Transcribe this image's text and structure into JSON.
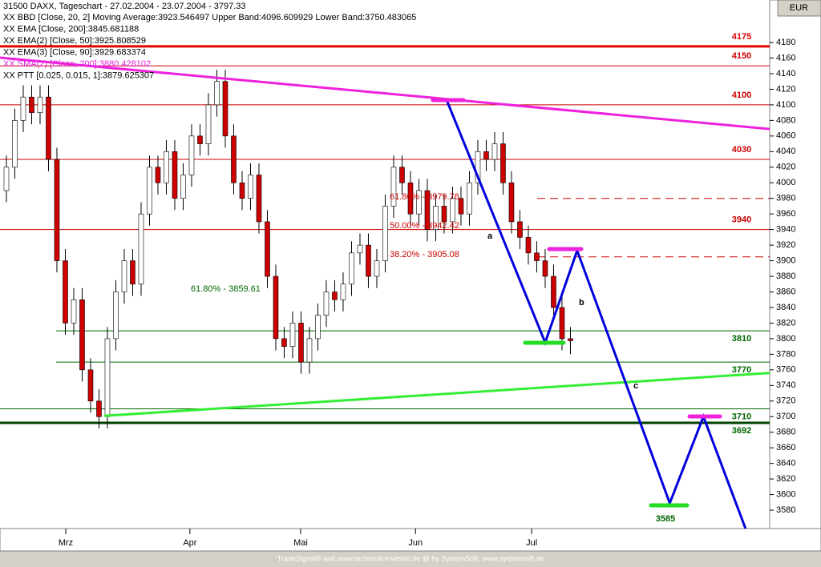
{
  "chart_data": {
    "type": "candlestick",
    "title": "31500  DAXX, Tageschart - 27.02.2004 - 23.07.2004 - 3797.33",
    "legend": [
      "XX BBD [Close, 20, 2] Moving Average:3923.546497 Upper Band:4096.609929 Lower Band:3750.483065",
      "XX EMA [Close, 200]:3845.681188",
      "XX EMA(2) [Close, 50]:3925.808529",
      "XX EMA(3) [Close, 90]:3929.683374",
      "XX SMA(2) [Close, 200]:3880.428102",
      "XX PTT [0.025, 0.015, 1]:3879.625307"
    ],
    "currency": "EUR",
    "footer": "TradeSignal® and www.technical-investor.de @ by SystemSoft, www.systemsoft.de",
    "open": [
      3990,
      4020,
      4080,
      4110,
      4090,
      4110,
      4030,
      3900,
      3820,
      3850,
      3760,
      3720,
      3700,
      3800,
      3860,
      3900,
      3870,
      3960,
      4020,
      4000,
      4040,
      3980,
      4010,
      4060,
      4050,
      4100,
      4130,
      4060,
      4000,
      3980,
      4010,
      3950,
      3880,
      3800,
      3790,
      3820,
      3770,
      3800,
      3830,
      3860,
      3850,
      3870,
      3910,
      3920,
      3880,
      3900,
      3970,
      4020,
      4000,
      3960,
      3990,
      3940,
      3970,
      3950,
      3980,
      3960,
      4000,
      4040,
      4030,
      4050,
      4000,
      3950,
      3930,
      3910,
      3900,
      3880,
      3840,
      3800
    ],
    "high": [
      4035,
      4095,
      4125,
      4125,
      4125,
      4125,
      4045,
      3915,
      3865,
      3865,
      3775,
      3735,
      3815,
      3875,
      3915,
      3915,
      3975,
      4035,
      4035,
      4055,
      4055,
      4025,
      4075,
      4075,
      4115,
      4145,
      4145,
      4075,
      4015,
      4025,
      4025,
      3965,
      3895,
      3815,
      3835,
      3835,
      3815,
      3845,
      3875,
      3875,
      3885,
      3925,
      3935,
      3935,
      3915,
      3985,
      4035,
      4035,
      4015,
      4005,
      4005,
      3985,
      3985,
      3995,
      3995,
      4015,
      4055,
      4055,
      4065,
      4065,
      4015,
      3965,
      3945,
      3925,
      3915,
      3895,
      3855,
      3815
    ],
    "low": [
      3975,
      4005,
      4065,
      4075,
      4075,
      4015,
      3885,
      3805,
      3805,
      3745,
      3705,
      3685,
      3685,
      3785,
      3845,
      3855,
      3855,
      3945,
      3985,
      3985,
      3965,
      3965,
      3995,
      4035,
      4035,
      4085,
      4045,
      3985,
      3965,
      3965,
      3935,
      3865,
      3785,
      3775,
      3775,
      3755,
      3755,
      3785,
      3815,
      3835,
      3835,
      3855,
      3895,
      3865,
      3865,
      3885,
      3955,
      3985,
      3945,
      3945,
      3925,
      3925,
      3935,
      3935,
      3945,
      3945,
      3985,
      4015,
      4015,
      3985,
      3935,
      3915,
      3895,
      3885,
      3865,
      3825,
      3785,
      3780
    ],
    "close": [
      4020,
      4080,
      4110,
      4090,
      4110,
      4030,
      3900,
      3820,
      3850,
      3760,
      3720,
      3700,
      3800,
      3860,
      3900,
      3870,
      3960,
      4020,
      4000,
      4040,
      3980,
      4010,
      4060,
      4050,
      4100,
      4130,
      4060,
      4000,
      3980,
      4010,
      3950,
      3880,
      3800,
      3790,
      3820,
      3770,
      3800,
      3830,
      3860,
      3850,
      3870,
      3910,
      3920,
      3880,
      3900,
      3970,
      4020,
      4000,
      3960,
      3990,
      3940,
      3970,
      3950,
      3980,
      3960,
      4000,
      4040,
      4030,
      4050,
      4000,
      3950,
      3930,
      3910,
      3900,
      3880,
      3840,
      3800,
      3797.33
    ],
    "up_color": "#ffffff",
    "down_color": "#cc0000",
    "xlim": [
      -0.76,
      90.67
    ],
    "xticks": [
      {
        "value": 7.05,
        "label": "Mrz"
      },
      {
        "value": 21.8,
        "label": "Apr"
      },
      {
        "value": 34.95,
        "label": "Mai"
      },
      {
        "value": 48.6,
        "label": "Jun"
      },
      {
        "value": 62.4,
        "label": "Jul"
      }
    ],
    "ylim": [
      3556.4,
      4234.5
    ],
    "yticks": [
      3580,
      3600,
      3620,
      3640,
      3660,
      3680,
      3700,
      3720,
      3740,
      3760,
      3780,
      3800,
      3820,
      3840,
      3860,
      3880,
      3900,
      3920,
      3940,
      3960,
      3980,
      4000,
      4020,
      4040,
      4060,
      4080,
      4100,
      4120,
      4140,
      4160,
      4180
    ],
    "levels": [
      {
        "value": 4175,
        "color": "#e00000"
      },
      {
        "value": 4150,
        "color": "#cc0000"
      },
      {
        "value": 4100,
        "color": "#cc0000"
      },
      {
        "value": 4030,
        "color": "#cc0000"
      },
      {
        "value": 3940,
        "color": "#cc0000"
      },
      {
        "value": 3810,
        "color": "#006600"
      },
      {
        "value": 3770,
        "color": "#006600"
      },
      {
        "value": 3710,
        "color": "#006600"
      },
      {
        "value": 3692,
        "color": "#006600"
      },
      {
        "value": 3585,
        "color": "#006600"
      }
    ],
    "dashed_levels": [
      3980,
      3905
    ],
    "trendlines": [
      {
        "color": "#ee22dd",
        "x": [
          -0.76,
          90.67
        ],
        "y": [
          4160.5,
          4069
        ]
      },
      {
        "color": "#33ee33",
        "x": [
          11.6,
          90.67
        ],
        "y": [
          3701,
          3756
        ]
      }
    ],
    "projection": {
      "color": "#0000dd",
      "x": [
        52.3,
        64.0,
        67.8,
        78.8,
        82.8,
        87.8
      ],
      "y": [
        4106,
        3795,
        3913,
        3589,
        3700,
        3556.4
      ]
    },
    "annotations": [
      "a",
      "b",
      "c",
      "61.80% - 3979.76",
      "50.00% - 3942.42",
      "38.20% - 3905.08",
      "61.80% - 3859.61"
    ]
  }
}
